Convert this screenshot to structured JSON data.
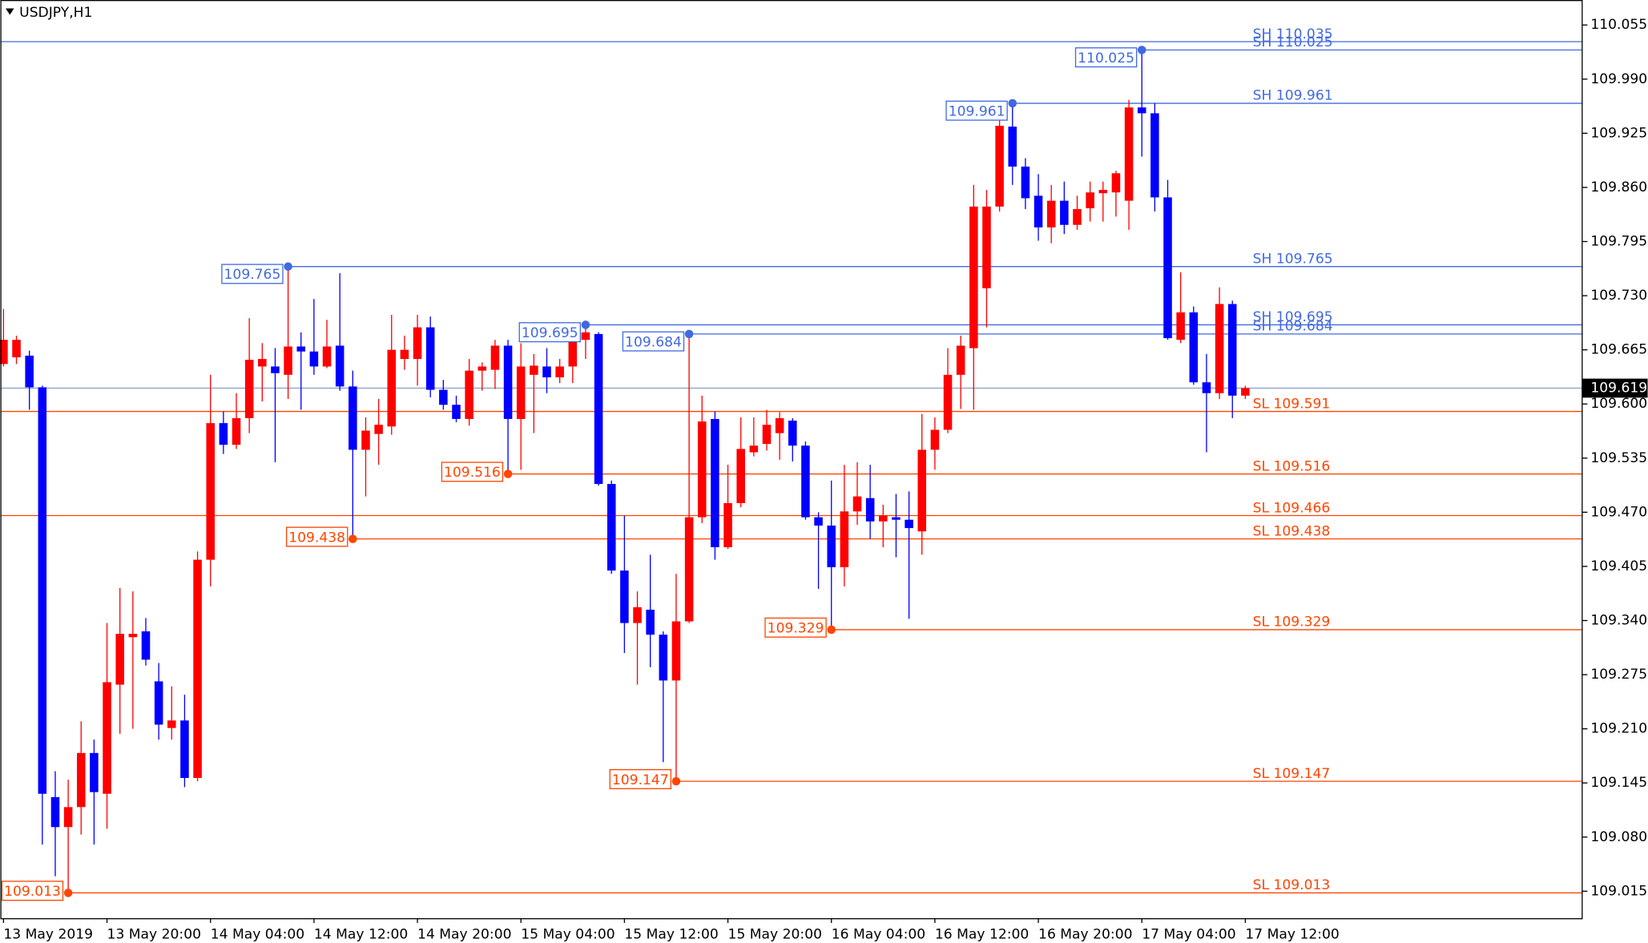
{
  "chart_data": {
    "type": "candlestick",
    "title": "USDJPY,H1",
    "up_color": "#ff0000",
    "down_color": "#0000ff",
    "high_color": "#4169e1",
    "low_color": "#ff4500",
    "current_price": 109.619,
    "current_price_color": "#8fa3c9",
    "categories": [
      "13 May 2019",
      null,
      null,
      null,
      null,
      null,
      null,
      null,
      "13 May 20:00",
      null,
      null,
      null,
      null,
      null,
      null,
      null,
      "14 May 04:00",
      null,
      null,
      null,
      null,
      null,
      null,
      null,
      "14 May 12:00",
      null,
      null,
      null,
      null,
      null,
      null,
      null,
      "14 May 20:00",
      null,
      null,
      null,
      null,
      null,
      null,
      null,
      "15 May 04:00",
      null,
      null,
      null,
      null,
      null,
      null,
      null,
      "15 May 12:00",
      null,
      null,
      null,
      null,
      null,
      null,
      null,
      "15 May 20:00",
      null,
      null,
      null,
      null,
      null,
      null,
      null,
      "16 May 04:00",
      null,
      null,
      null,
      null,
      null,
      null,
      null,
      "16 May 12:00",
      null,
      null,
      null,
      null,
      null,
      null,
      null,
      "16 May 20:00",
      null,
      null,
      null,
      null,
      null,
      null,
      null,
      "17 May 04:00",
      null,
      null,
      null,
      null,
      null,
      null,
      null,
      "17 May 12:00"
    ],
    "open": [
      109.648,
      109.656,
      109.658,
      109.62,
      109.128,
      109.092,
      109.116,
      109.181,
      109.132,
      109.263,
      109.32,
      109.327,
      109.267,
      109.211,
      109.22,
      109.151,
      109.413,
      109.577,
      109.551,
      109.583,
      109.645,
      109.645,
      109.635,
      109.669,
      109.663,
      109.645,
      109.67,
      109.621,
      109.545,
      109.564,
      109.573,
      109.654,
      109.654,
      109.692,
      109.617,
      109.599,
      109.582,
      109.64,
      109.641,
      109.67,
      109.582,
      109.635,
      109.645,
      109.632,
      109.645,
      109.677,
      109.684,
      109.504,
      109.4,
      109.337,
      109.353,
      109.323,
      109.268,
      109.339,
      109.464,
      109.582,
      109.428,
      109.481,
      109.542,
      109.552,
      109.565,
      109.58,
      109.55,
      109.464,
      109.454,
      109.404,
      109.471,
      109.487,
      109.459,
      109.464,
      109.461,
      109.447,
      109.545,
      109.569,
      109.635,
      109.667,
      109.739,
      109.837,
      109.933,
      109.885,
      109.85,
      109.812,
      109.844,
      109.815,
      109.835,
      109.853,
      109.854,
      109.844,
      109.956,
      109.949,
      109.848,
      109.677,
      109.71,
      109.626,
      109.613,
      109.72,
      109.61
    ],
    "high": [
      109.714,
      109.682,
      109.664,
      109.622,
      109.159,
      109.149,
      109.219,
      109.197,
      109.337,
      109.379,
      109.375,
      109.343,
      109.289,
      109.261,
      109.251,
      109.423,
      109.635,
      109.591,
      109.613,
      109.703,
      109.673,
      109.667,
      109.765,
      109.686,
      109.726,
      109.701,
      109.757,
      109.64,
      109.584,
      109.606,
      109.707,
      109.682,
      109.707,
      109.705,
      109.629,
      109.61,
      109.654,
      109.65,
      109.677,
      109.677,
      109.673,
      109.66,
      109.667,
      109.654,
      109.688,
      109.695,
      109.686,
      109.508,
      109.466,
      109.375,
      109.419,
      109.327,
      109.396,
      109.684,
      109.61,
      109.591,
      109.527,
      109.584,
      109.584,
      109.593,
      109.59,
      109.583,
      109.555,
      109.47,
      109.508,
      109.527,
      109.53,
      109.527,
      109.479,
      109.492,
      109.495,
      109.588,
      109.584,
      109.667,
      109.682,
      109.863,
      109.857,
      109.946,
      109.961,
      109.895,
      109.876,
      109.863,
      109.867,
      109.85,
      109.867,
      109.867,
      109.88,
      109.965,
      110.025,
      109.961,
      109.869,
      109.758,
      109.717,
      109.66,
      109.74,
      109.724,
      109.622
    ],
    "low": [
      109.645,
      109.648,
      109.593,
      109.071,
      109.033,
      109.013,
      109.083,
      109.071,
      109.09,
      109.204,
      109.21,
      109.286,
      109.197,
      109.197,
      109.14,
      109.147,
      109.381,
      109.54,
      109.546,
      109.565,
      109.603,
      109.53,
      109.606,
      109.593,
      109.635,
      109.643,
      109.616,
      109.438,
      109.489,
      109.527,
      109.563,
      109.641,
      109.622,
      109.608,
      109.593,
      109.578,
      109.574,
      109.616,
      109.618,
      109.516,
      109.521,
      109.565,
      109.613,
      109.625,
      109.625,
      109.654,
      109.502,
      109.396,
      109.301,
      109.263,
      109.284,
      109.17,
      109.147,
      109.337,
      109.457,
      109.413,
      109.426,
      109.476,
      109.537,
      109.544,
      109.533,
      109.531,
      109.461,
      109.378,
      109.329,
      109.381,
      109.455,
      109.438,
      109.428,
      109.416,
      109.342,
      109.419,
      109.521,
      109.565,
      109.594,
      109.593,
      109.692,
      109.831,
      109.863,
      109.834,
      109.796,
      109.793,
      109.804,
      109.809,
      109.819,
      109.819,
      109.825,
      109.809,
      109.897,
      109.831,
      109.677,
      109.673,
      109.623,
      109.542,
      109.606,
      109.583,
      109.606
    ],
    "close": [
      109.677,
      109.677,
      109.62,
      109.132,
      109.092,
      109.116,
      109.181,
      109.134,
      109.266,
      109.324,
      109.324,
      109.293,
      109.215,
      109.22,
      109.151,
      109.413,
      109.577,
      109.551,
      109.583,
      109.653,
      109.654,
      109.637,
      109.669,
      109.663,
      109.645,
      109.669,
      109.621,
      109.545,
      109.568,
      109.575,
      109.665,
      109.665,
      109.692,
      109.617,
      109.599,
      109.582,
      109.64,
      109.645,
      109.67,
      109.582,
      109.645,
      109.646,
      109.632,
      109.645,
      109.68,
      109.686,
      109.504,
      109.4,
      109.337,
      109.356,
      109.323,
      109.268,
      109.339,
      109.464,
      109.579,
      109.428,
      109.481,
      109.546,
      109.55,
      109.575,
      109.583,
      109.55,
      109.464,
      109.454,
      109.404,
      109.471,
      109.489,
      109.459,
      109.466,
      109.461,
      109.451,
      109.545,
      109.569,
      109.635,
      109.67,
      109.837,
      109.837,
      109.934,
      109.885,
      109.847,
      109.812,
      109.844,
      109.815,
      109.834,
      109.854,
      109.857,
      109.877,
      109.956,
      109.949,
      109.848,
      109.679,
      109.71,
      109.626,
      109.613,
      109.72,
      109.61,
      109.619
    ],
    "levels": [
      {
        "value": 110.035,
        "label": "SH 110.035",
        "kind": "high"
      },
      {
        "value": 110.025,
        "label": "SH 110.025",
        "kind": "high"
      },
      {
        "value": 109.961,
        "label": "SH 109.961",
        "kind": "high"
      },
      {
        "value": 109.765,
        "label": "SH 109.765",
        "kind": "high"
      },
      {
        "value": 109.695,
        "label": "SH 109.695",
        "kind": "high"
      },
      {
        "value": 109.684,
        "label": "SH 109.684",
        "kind": "high"
      },
      {
        "value": 109.591,
        "label": "SL 109.591",
        "kind": "low"
      },
      {
        "value": 109.516,
        "label": "SL 109.516",
        "kind": "low"
      },
      {
        "value": 109.466,
        "label": "SL 109.466",
        "kind": "low"
      },
      {
        "value": 109.438,
        "label": "SL 109.438",
        "kind": "low"
      },
      {
        "value": 109.329,
        "label": "SL 109.329",
        "kind": "low"
      },
      {
        "value": 109.147,
        "label": "SL 109.147",
        "kind": "low"
      },
      {
        "value": 109.013,
        "label": "SL 109.013",
        "kind": "low"
      }
    ],
    "swing_points": [
      {
        "value": 110.025,
        "index": 88,
        "kind": "high"
      },
      {
        "value": 109.961,
        "index": 78,
        "kind": "high"
      },
      {
        "value": 109.765,
        "index": 22,
        "kind": "high"
      },
      {
        "value": 109.695,
        "index": 45,
        "kind": "high"
      },
      {
        "value": 109.684,
        "index": 53,
        "kind": "high"
      },
      {
        "value": 109.516,
        "index": 39,
        "kind": "low"
      },
      {
        "value": 109.438,
        "index": 27,
        "kind": "low"
      },
      {
        "value": 109.329,
        "index": 64,
        "kind": "low"
      },
      {
        "value": 109.147,
        "index": 52,
        "kind": "low"
      },
      {
        "value": 109.013,
        "index": 5,
        "kind": "low"
      }
    ],
    "ylim": [
      108.982,
      110.085
    ],
    "yticks": [
      110.055,
      {
        "value": 109.99,
        "label": "109.990"
      },
      109.925,
      {
        "value": 109.86,
        "label": "109.860"
      },
      109.795,
      {
        "value": 109.73,
        "label": "109.730"
      },
      109.665,
      {
        "value": 109.6,
        "label": "109.600"
      },
      109.535,
      {
        "value": 109.47,
        "label": "109.470"
      },
      109.405,
      {
        "value": 109.34,
        "label": "109.340"
      },
      109.275,
      {
        "value": 109.21,
        "label": "109.210"
      },
      109.145,
      {
        "value": 109.08,
        "label": "109.080"
      },
      109.015
    ]
  }
}
